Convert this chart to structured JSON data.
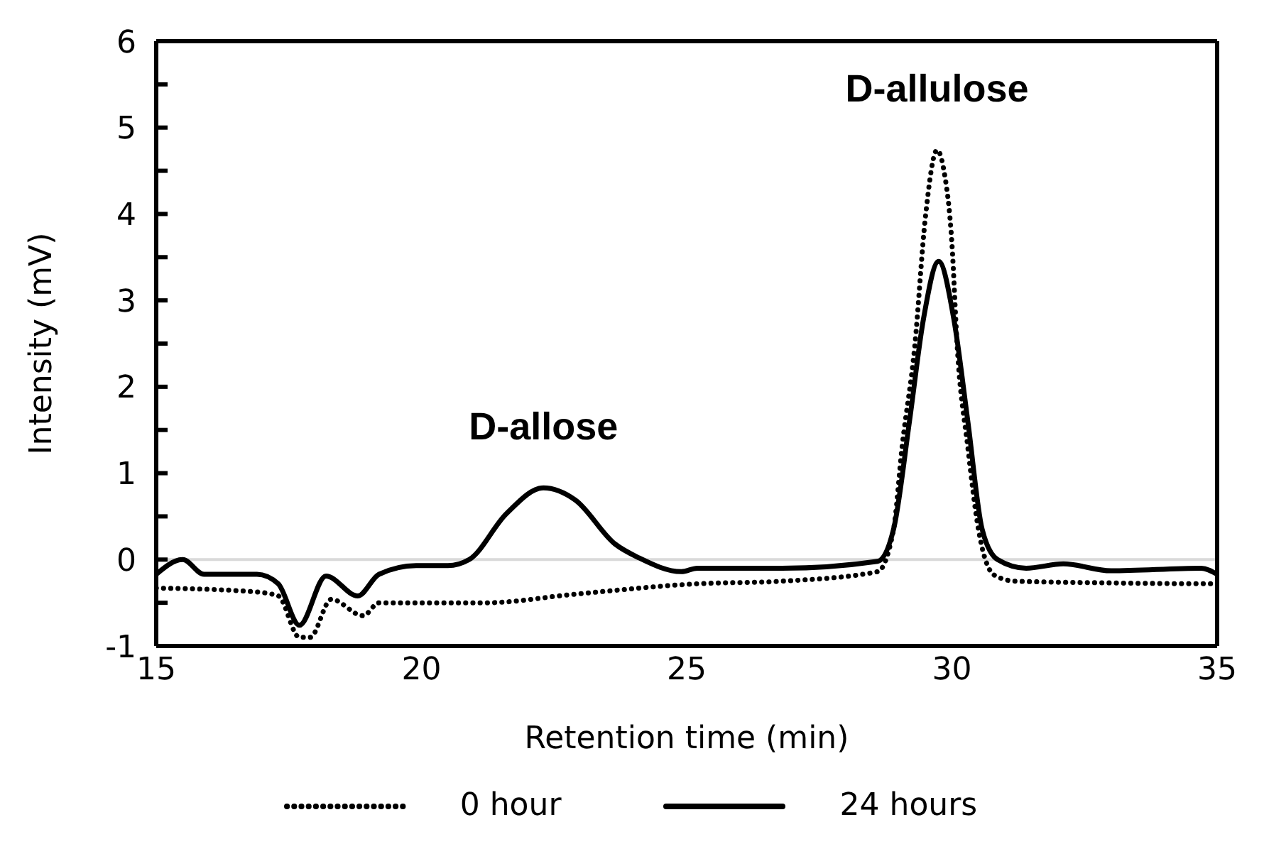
{
  "chart_data": {
    "type": "line",
    "xlabel": "Retention time (min)",
    "ylabel": "Intensity (mV)",
    "xlim": [
      15,
      35
    ],
    "xticks": [
      15,
      20,
      25,
      30,
      35
    ],
    "ylim": [
      -1,
      6
    ],
    "yticks": [
      -1,
      {
        "value": -0.5,
        "label": null
      },
      0,
      {
        "value": 0.5,
        "label": null
      },
      1,
      {
        "value": 1.5,
        "label": null
      },
      2,
      {
        "value": 2.5,
        "label": null
      },
      3,
      {
        "value": 3.5,
        "label": null
      },
      4,
      {
        "value": 4.5,
        "label": null
      },
      5,
      {
        "value": 5.5,
        "label": null
      },
      6
    ],
    "legend": "bottom",
    "marker": "none",
    "ref_lines": [
      {
        "axis": "y",
        "value": 0,
        "color": "#d9d9d9",
        "line_style": "solid"
      }
    ],
    "annotations": [
      {
        "text": "D-allose",
        "x": 22.3,
        "y": 0.83
      },
      {
        "text": "D-allulose",
        "x": 29.72,
        "y": 4.74
      }
    ],
    "series": [
      {
        "name": "0 hour",
        "color": "#000000",
        "line_style": "dotted",
        "x": [
          15,
          16.8,
          17.3,
          17.7,
          17.9,
          18.3,
          18.9,
          19.2,
          21.2,
          22.9,
          25.2,
          26.8,
          28.6,
          28.9,
          29.06,
          29.3,
          29.5,
          29.72,
          29.85,
          30.0,
          30.1,
          30.3,
          30.5,
          30.8,
          31.2,
          33,
          34.9,
          35
        ],
        "values": [
          -0.33,
          -0.37,
          -0.42,
          -0.9,
          -0.9,
          -0.46,
          -0.65,
          -0.5,
          -0.5,
          -0.4,
          -0.28,
          -0.25,
          -0.14,
          0.35,
          1.3,
          2.47,
          3.96,
          4.74,
          4.5,
          3.66,
          2.47,
          1.3,
          0.35,
          -0.18,
          -0.25,
          -0.27,
          -0.28,
          -0.28
        ]
      },
      {
        "name": "24 hours",
        "color": "#000000",
        "line_style": "solid",
        "x": [
          15,
          15.5,
          15.9,
          16.9,
          17.3,
          17.7,
          18.2,
          18.8,
          19.2,
          19.9,
          20.5,
          20.9,
          21.6,
          22.3,
          22.9,
          23.65,
          24.1,
          24.9,
          25.2,
          26.8,
          28.6,
          28.9,
          29.2,
          29.46,
          29.75,
          30.04,
          30.3,
          30.57,
          30.86,
          31.4,
          32.1,
          33.0,
          34.7,
          35
        ],
        "values": [
          -0.17,
          0,
          -0.17,
          -0.17,
          -0.28,
          -0.76,
          -0.19,
          -0.42,
          -0.17,
          -0.07,
          -0.07,
          0,
          0.53,
          0.83,
          0.69,
          0.18,
          0.02,
          -0.14,
          -0.1,
          -0.1,
          -0.02,
          0.35,
          1.6,
          2.77,
          3.45,
          2.77,
          1.6,
          0.35,
          0,
          -0.1,
          -0.05,
          -0.13,
          -0.1,
          -0.17
        ]
      }
    ]
  }
}
